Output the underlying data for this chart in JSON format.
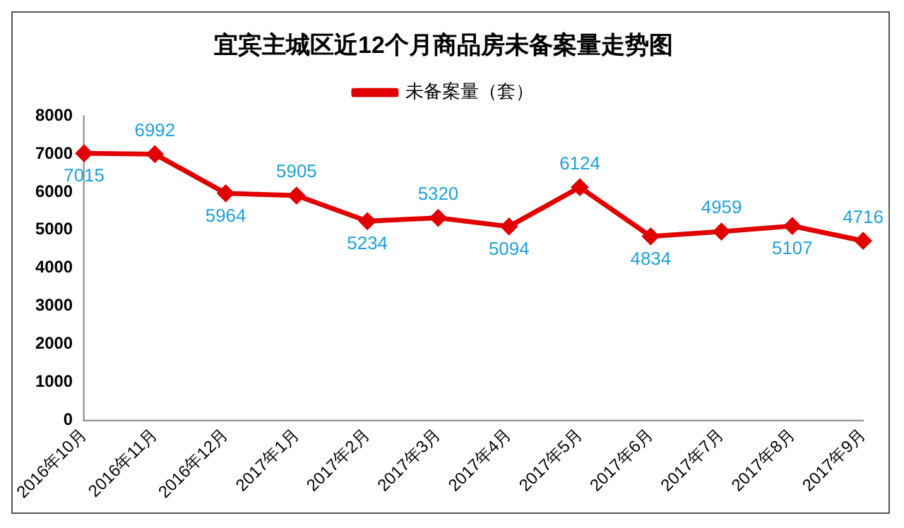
{
  "chart_data": {
    "type": "line",
    "title": "宜宾主城区近12个月商品房未备案量走势图",
    "categories": [
      "2016年10月",
      "2016年11月",
      "2016年12月",
      "2017年1月",
      "2017年2月",
      "2017年3月",
      "2017年4月",
      "2017年5月",
      "2017年6月",
      "2017年7月",
      "2017年8月",
      "2017年9月"
    ],
    "series": [
      {
        "name": "未备案量（套）",
        "color": "#e00000",
        "values": [
          7015,
          6992,
          5964,
          5905,
          5234,
          5320,
          5094,
          6124,
          4834,
          4959,
          5107,
          4716
        ]
      }
    ],
    "ylim": [
      0,
      8000
    ],
    "yticks": [
      0,
      1000,
      2000,
      3000,
      4000,
      5000,
      6000,
      7000,
      8000
    ],
    "grid": false,
    "legend": "top",
    "marker": "diamond",
    "line_style": "solid",
    "data_labels": true
  }
}
